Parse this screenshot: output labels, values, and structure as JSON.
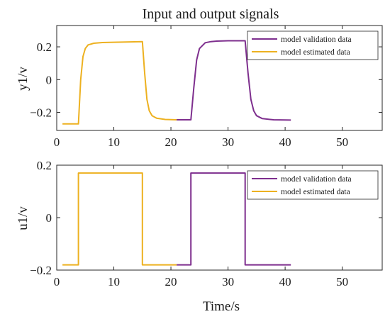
{
  "colors": {
    "validation": "#7e2f8e",
    "estimated": "#edb120",
    "axes": "#262626"
  },
  "chart_data": [
    {
      "type": "line",
      "title": "Input and output signals",
      "xlabel": "",
      "ylabel": "y1/v",
      "xlim": [
        0,
        57
      ],
      "ylim": [
        -0.31,
        0.33
      ],
      "xticks": [
        0,
        10,
        20,
        30,
        40,
        50
      ],
      "yticks": [
        -0.2,
        0,
        0.2
      ],
      "ytick_labels": [
        "−0.2",
        "0",
        "0.2"
      ],
      "grid": false,
      "legend_position": "top-right",
      "series": [
        {
          "name": "model validation data",
          "color": "#7e2f8e",
          "x": [
            21,
            23.5,
            24,
            24.5,
            25,
            26,
            27,
            28,
            30,
            33,
            33.5,
            34,
            34.5,
            35,
            36,
            38,
            41
          ],
          "y": [
            -0.245,
            -0.245,
            -0.05,
            0.12,
            0.19,
            0.225,
            0.232,
            0.235,
            0.237,
            0.237,
            0.04,
            -0.12,
            -0.19,
            -0.22,
            -0.238,
            -0.245,
            -0.247
          ]
        },
        {
          "name": "model estimated data",
          "color": "#edb120",
          "x": [
            1,
            3.8,
            4.2,
            4.6,
            5,
            5.5,
            6.5,
            8,
            10,
            15,
            15.4,
            15.8,
            16.2,
            16.7,
            17.5,
            19,
            21
          ],
          "y": [
            -0.27,
            -0.27,
            0.0,
            0.14,
            0.19,
            0.212,
            0.222,
            0.226,
            0.228,
            0.232,
            0.04,
            -0.12,
            -0.19,
            -0.22,
            -0.235,
            -0.243,
            -0.245
          ]
        }
      ]
    },
    {
      "type": "line",
      "title": "",
      "xlabel": "Time/s",
      "ylabel": "u1/v",
      "xlim": [
        0,
        57
      ],
      "ylim": [
        -0.2,
        0.2
      ],
      "xticks": [
        0,
        10,
        20,
        30,
        40,
        50
      ],
      "yticks": [
        -0.2,
        0,
        0.2
      ],
      "ytick_labels": [
        "−0.2",
        "0",
        "0.2"
      ],
      "grid": false,
      "legend_position": "top-right",
      "series": [
        {
          "name": "model validation data",
          "color": "#7e2f8e",
          "x": [
            21,
            23.5,
            23.5,
            33,
            33,
            41
          ],
          "y": [
            -0.18,
            -0.18,
            0.17,
            0.17,
            -0.18,
            -0.18
          ]
        },
        {
          "name": "model estimated data",
          "color": "#edb120",
          "x": [
            1,
            3.8,
            3.8,
            15,
            15,
            21
          ],
          "y": [
            -0.18,
            -0.18,
            0.17,
            0.17,
            -0.18,
            -0.18
          ]
        }
      ]
    }
  ]
}
